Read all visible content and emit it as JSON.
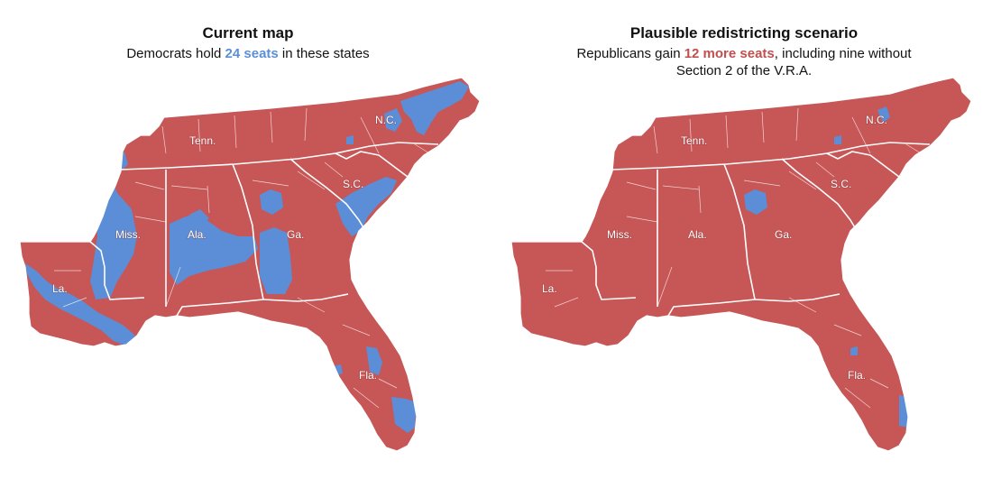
{
  "colors": {
    "republican": "#c75656",
    "democrat": "#5b8ed6",
    "border": "#ffffff",
    "background": "#ffffff"
  },
  "panels": {
    "current": {
      "title": "Current map",
      "subtitle_pre": "Democrats hold ",
      "subtitle_highlight": "24 seats",
      "subtitle_post": " in these states",
      "state_labels": {
        "tenn": "Tenn.",
        "nc": "N.C.",
        "sc": "S.C.",
        "miss": "Miss.",
        "ala": "Ala.",
        "ga": "Ga.",
        "la": "La.",
        "fla": "Fla."
      }
    },
    "scenario": {
      "title": "Plausible redistricting scenario",
      "subtitle_pre": "Republicans gain ",
      "subtitle_highlight": "12 more seats",
      "subtitle_post": ", including nine without Section 2 of the V.R.A.",
      "state_labels": {
        "tenn": "Tenn.",
        "nc": "N.C.",
        "sc": "S.C.",
        "miss": "Miss.",
        "ala": "Ala.",
        "ga": "Ga.",
        "la": "La.",
        "fla": "Fla."
      }
    }
  }
}
